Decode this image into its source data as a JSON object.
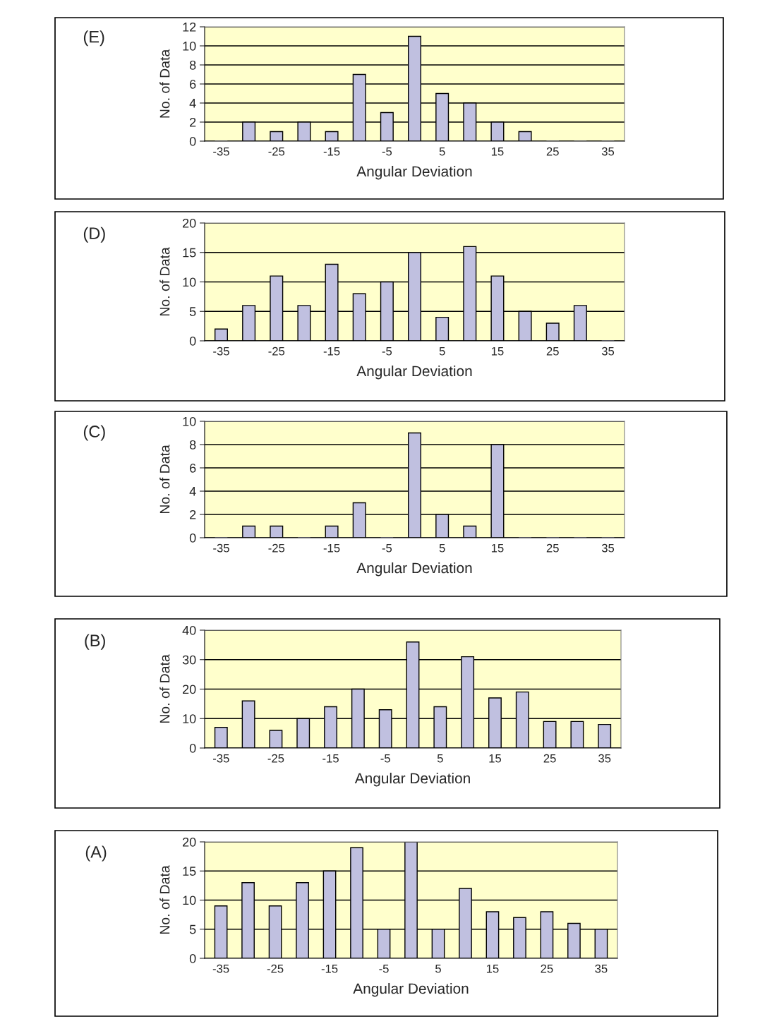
{
  "chart_data": [
    {
      "type": "bar",
      "title": "(E)",
      "xlabel": "Angular Deviation",
      "ylabel": "No. of Data",
      "categories": [
        "-35",
        null,
        "-25",
        null,
        "-15",
        null,
        "-5",
        null,
        "5",
        null,
        "15",
        null,
        "25",
        null,
        "35"
      ],
      "color": "#c0c0e0",
      "values": [
        0,
        2,
        1,
        2,
        1,
        7,
        3,
        11,
        5,
        4,
        2,
        1,
        0,
        0,
        0
      ],
      "ylim": [
        0,
        12
      ],
      "yticks": [
        0,
        2,
        4,
        6,
        8,
        10,
        12
      ],
      "grid": "y",
      "legend": false
    },
    {
      "type": "bar",
      "title": "(D)",
      "xlabel": "Angular Deviation",
      "ylabel": "No. of Data",
      "categories": [
        "-35",
        null,
        "-25",
        null,
        "-15",
        null,
        "-5",
        null,
        "5",
        null,
        "15",
        null,
        "25",
        null,
        "35"
      ],
      "color": "#c0c0e0",
      "values": [
        2,
        6,
        11,
        6,
        13,
        8,
        10,
        15,
        4,
        16,
        11,
        5,
        3,
        6,
        0
      ],
      "ylim": [
        0,
        20
      ],
      "yticks": [
        0,
        5,
        10,
        15,
        20
      ],
      "grid": "y",
      "legend": false
    },
    {
      "type": "bar",
      "title": "(C)",
      "xlabel": "Angular Deviation",
      "ylabel": "No. of Data",
      "categories": [
        "-35",
        null,
        "-25",
        null,
        "-15",
        null,
        "-5",
        null,
        "5",
        null,
        "15",
        null,
        "25",
        null,
        "35"
      ],
      "color": "#c0c0e0",
      "values": [
        0,
        1,
        1,
        0,
        1,
        3,
        0,
        9,
        2,
        1,
        8,
        0,
        0,
        0,
        0
      ],
      "ylim": [
        0,
        10
      ],
      "yticks": [
        0,
        2,
        4,
        6,
        8,
        10
      ],
      "grid": "y",
      "legend": false
    },
    {
      "type": "bar",
      "title": "(B)",
      "xlabel": "Angular Deviation",
      "ylabel": "No. of Data",
      "categories": [
        "-35",
        null,
        "-25",
        null,
        "-15",
        null,
        "-5",
        null,
        "5",
        null,
        "15",
        null,
        "25",
        null,
        "35"
      ],
      "color": "#c0c0e0",
      "values": [
        7,
        16,
        6,
        10,
        14,
        20,
        13,
        36,
        14,
        31,
        17,
        19,
        9,
        9,
        8
      ],
      "ylim": [
        0,
        40
      ],
      "yticks": [
        0,
        10,
        20,
        30,
        40
      ],
      "grid": "y",
      "legend": false
    },
    {
      "type": "bar",
      "title": "(A)",
      "xlabel": "Angular Deviation",
      "ylabel": "No. of Data",
      "categories": [
        "-35",
        null,
        "-25",
        null,
        "-15",
        null,
        "-5",
        null,
        "5",
        null,
        "15",
        null,
        "25",
        null,
        "35"
      ],
      "color": "#c0c0e0",
      "values": [
        9,
        13,
        9,
        13,
        15,
        19,
        5,
        20,
        5,
        12,
        8,
        7,
        8,
        6,
        5
      ],
      "ylim": [
        0,
        20
      ],
      "yticks": [
        0,
        5,
        10,
        15,
        20
      ],
      "grid": "y",
      "legend": false
    }
  ]
}
